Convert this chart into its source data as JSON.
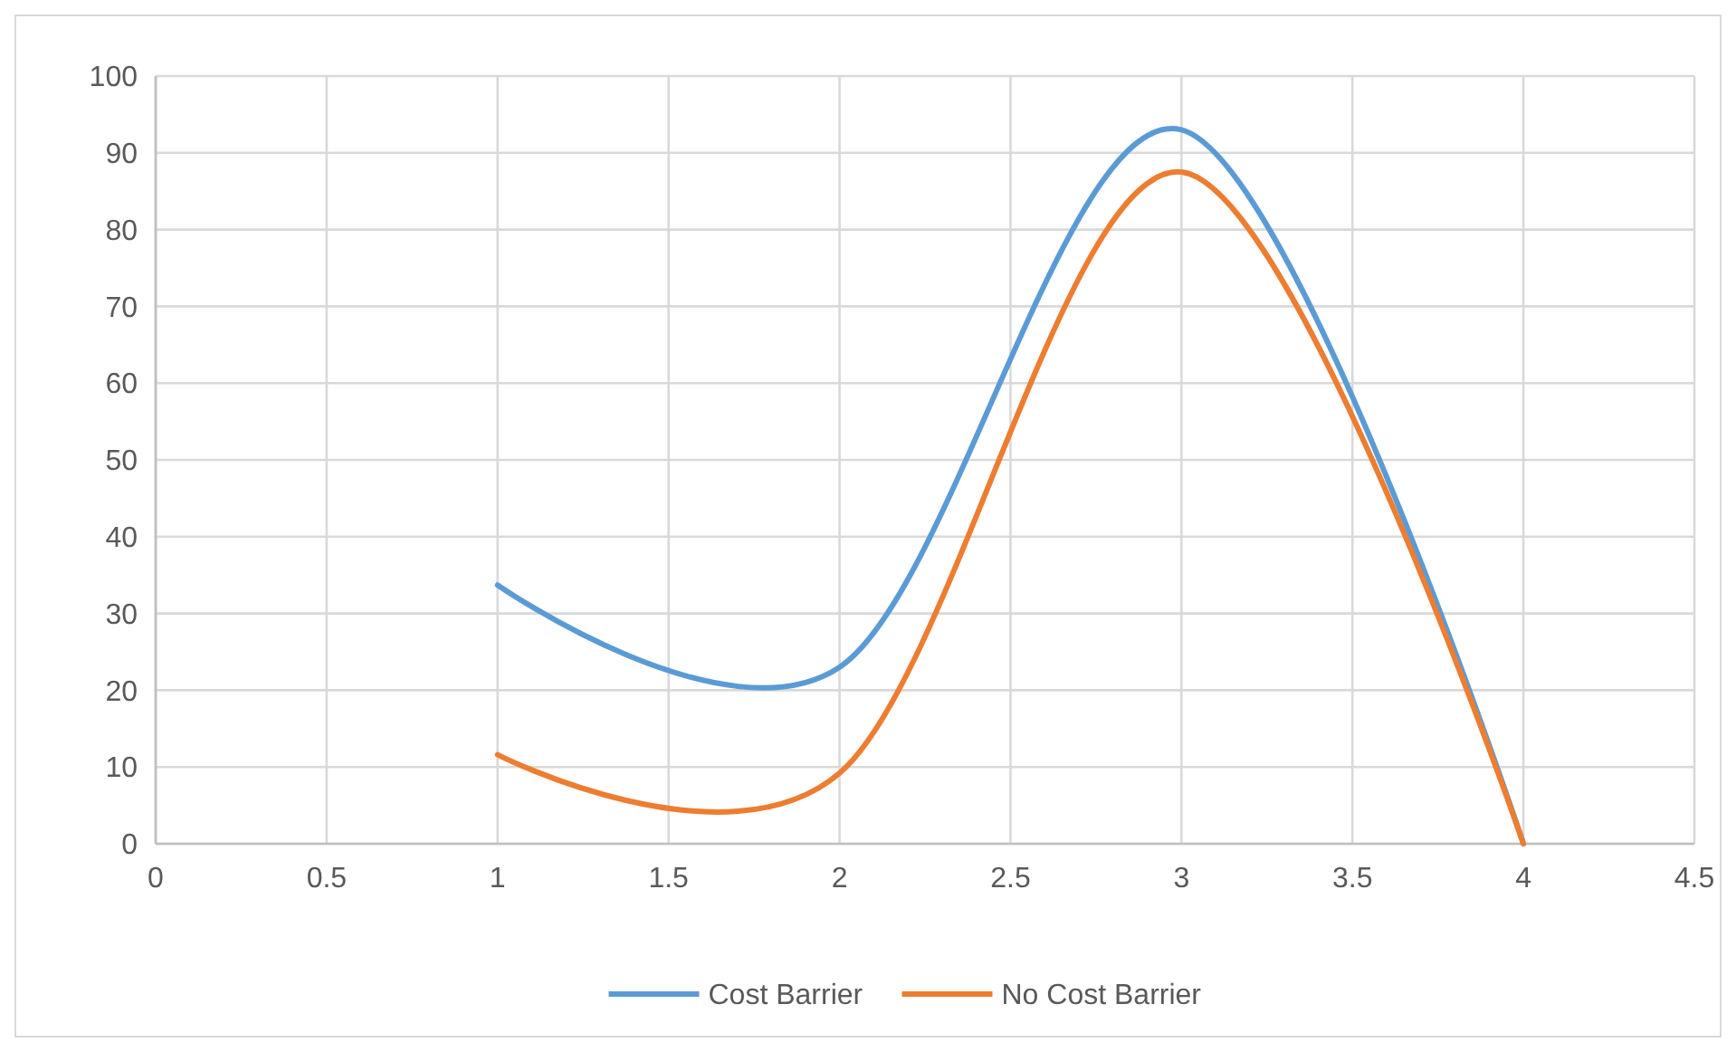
{
  "chart_data": {
    "type": "line",
    "x": [
      1,
      2,
      3,
      4
    ],
    "series": [
      {
        "name": "Cost Barrier",
        "color": "#5b9bd5",
        "values": [
          33.7,
          23,
          93,
          0
        ]
      },
      {
        "name": "No Cost Barrier",
        "color": "#ed7d31",
        "values": [
          11.6,
          9.2,
          87.5,
          0
        ]
      }
    ],
    "xlim": [
      0,
      4.5
    ],
    "xticks": [
      0,
      0.5,
      1,
      1.5,
      2,
      2.5,
      3,
      3.5,
      4,
      4.5
    ],
    "ylim": [
      0,
      100
    ],
    "yticks": [
      0,
      10,
      20,
      30,
      40,
      50,
      60,
      70,
      80,
      90,
      100
    ],
    "grid": true,
    "legend": "bottom",
    "marker": "none",
    "line_style": "solid"
  }
}
